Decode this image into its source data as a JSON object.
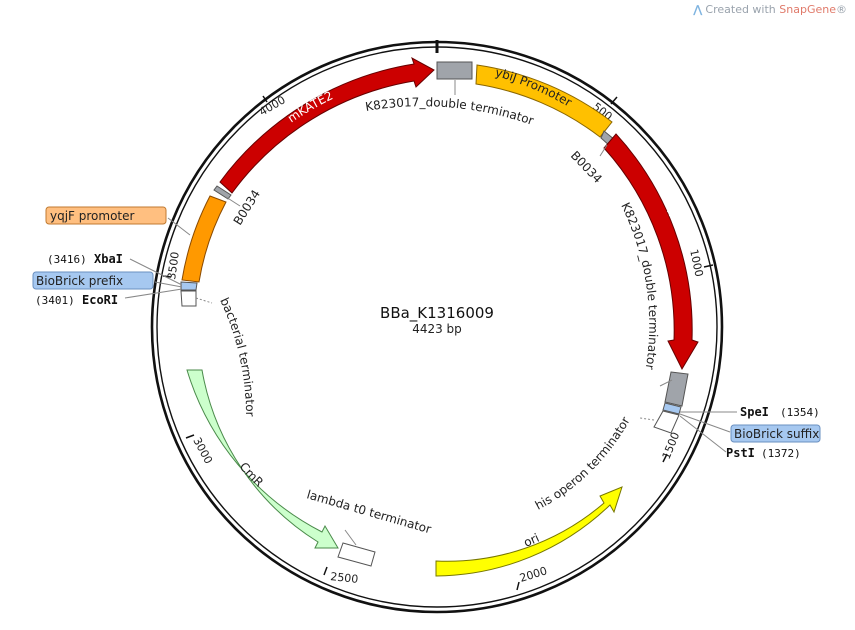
{
  "watermark": {
    "prefix": "Created with",
    "brand": "SnapGene",
    "mark": "®"
  },
  "plasmid": {
    "name": "BBa_K1316009",
    "length": "4423 bp"
  },
  "ticks": [
    "500",
    "1000",
    "1500",
    "2000",
    "2500",
    "3000",
    "3500",
    "4000"
  ],
  "features": {
    "mkate2_top": "mKATE2",
    "ybij": "ybiJ Promoter",
    "mkate2_right": "mKATE2",
    "cmr": "CmR",
    "ori": "ori"
  },
  "labels": {
    "k823017_top": "K823017_double terminator",
    "k823017_right": "K823017_double terminator",
    "b0034_right": "B0034",
    "b0034_left": "B0034",
    "bacterial_terminator": "bacterial terminator",
    "lambda_t0": "lambda t0 terminator",
    "his_operon": "his operon terminator",
    "yqjf_promoter": "yqjF promoter",
    "biobrick_prefix": "BioBrick prefix",
    "biobrick_suffix": "BioBrick suffix"
  },
  "sites": {
    "xbai": {
      "pos": "(3416)",
      "name": "XbaI"
    },
    "ecori": {
      "pos": "(3401)",
      "name": "EcoRI"
    },
    "spei": {
      "pos": "(1354)",
      "name": "SpeI"
    },
    "psti": {
      "pos": "(1372)",
      "name": "PstI"
    }
  },
  "colors": {
    "mkate2": "#cc0000",
    "ybij": "#ffc000",
    "yqjf": "#ff9900",
    "cmr": "#ccffcc",
    "ori": "#ffff00",
    "terminator": "#a0a4aa",
    "biobrick": "#a6c8f0"
  }
}
